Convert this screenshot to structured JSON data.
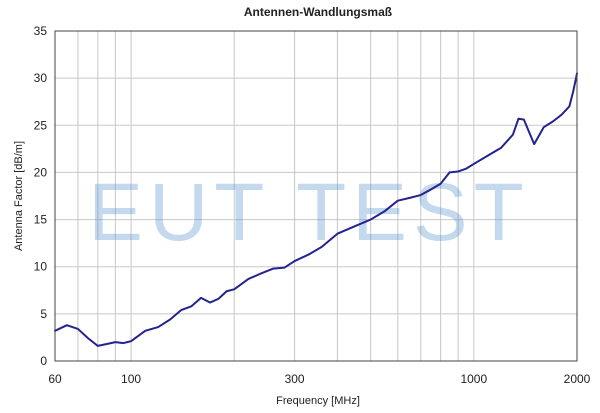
{
  "chart_data": {
    "type": "line",
    "title": "Antennen-Wandlungsmaß",
    "xlabel": "Frequency [MHz]",
    "ylabel": "Antenna Factor [dB/m]",
    "x_scale": "log",
    "xlim": [
      60,
      2000
    ],
    "ylim": [
      0,
      35
    ],
    "x_tick_labels": [
      "60",
      "100",
      "300",
      "1000",
      "2000"
    ],
    "x_ticks": [
      60,
      100,
      300,
      1000,
      2000
    ],
    "x_grid": [
      70,
      80,
      90,
      100,
      200,
      300,
      400,
      500,
      600,
      700,
      800,
      900,
      1000
    ],
    "y_ticks": [
      0,
      5,
      10,
      15,
      20,
      25,
      30,
      35
    ],
    "y_tick_labels": [
      "0",
      "5",
      "10",
      "15",
      "20",
      "25",
      "30",
      "35"
    ],
    "grid": true,
    "watermark": "EUT TEST",
    "colors": {
      "series": "#24238f",
      "grid": "#c8c8c8",
      "watermark": "#4f8fcc"
    },
    "series": [
      {
        "x": [
          60,
          65,
          70,
          75,
          80,
          85,
          90,
          95,
          100,
          110,
          120,
          130,
          140,
          150,
          160,
          170,
          180,
          190,
          200,
          220,
          240,
          260,
          280,
          300,
          330,
          360,
          400,
          450,
          500,
          550,
          600,
          650,
          700,
          750,
          800,
          850,
          900,
          950,
          1000,
          1100,
          1200,
          1300,
          1350,
          1400,
          1500,
          1600,
          1700,
          1800,
          1900,
          1950,
          2000
        ],
        "y": [
          3.2,
          3.8,
          3.4,
          2.4,
          1.6,
          1.8,
          2.0,
          1.9,
          2.1,
          3.2,
          3.6,
          4.4,
          5.4,
          5.8,
          6.7,
          6.2,
          6.6,
          7.4,
          7.6,
          8.7,
          9.3,
          9.8,
          9.9,
          10.6,
          11.3,
          12.1,
          13.5,
          14.3,
          15.0,
          15.9,
          17.0,
          17.3,
          17.6,
          18.2,
          18.8,
          20.0,
          20.1,
          20.4,
          20.9,
          21.8,
          22.6,
          24.0,
          25.7,
          25.6,
          23.0,
          24.8,
          25.4,
          26.1,
          27.0,
          28.6,
          30.5
        ]
      }
    ]
  }
}
